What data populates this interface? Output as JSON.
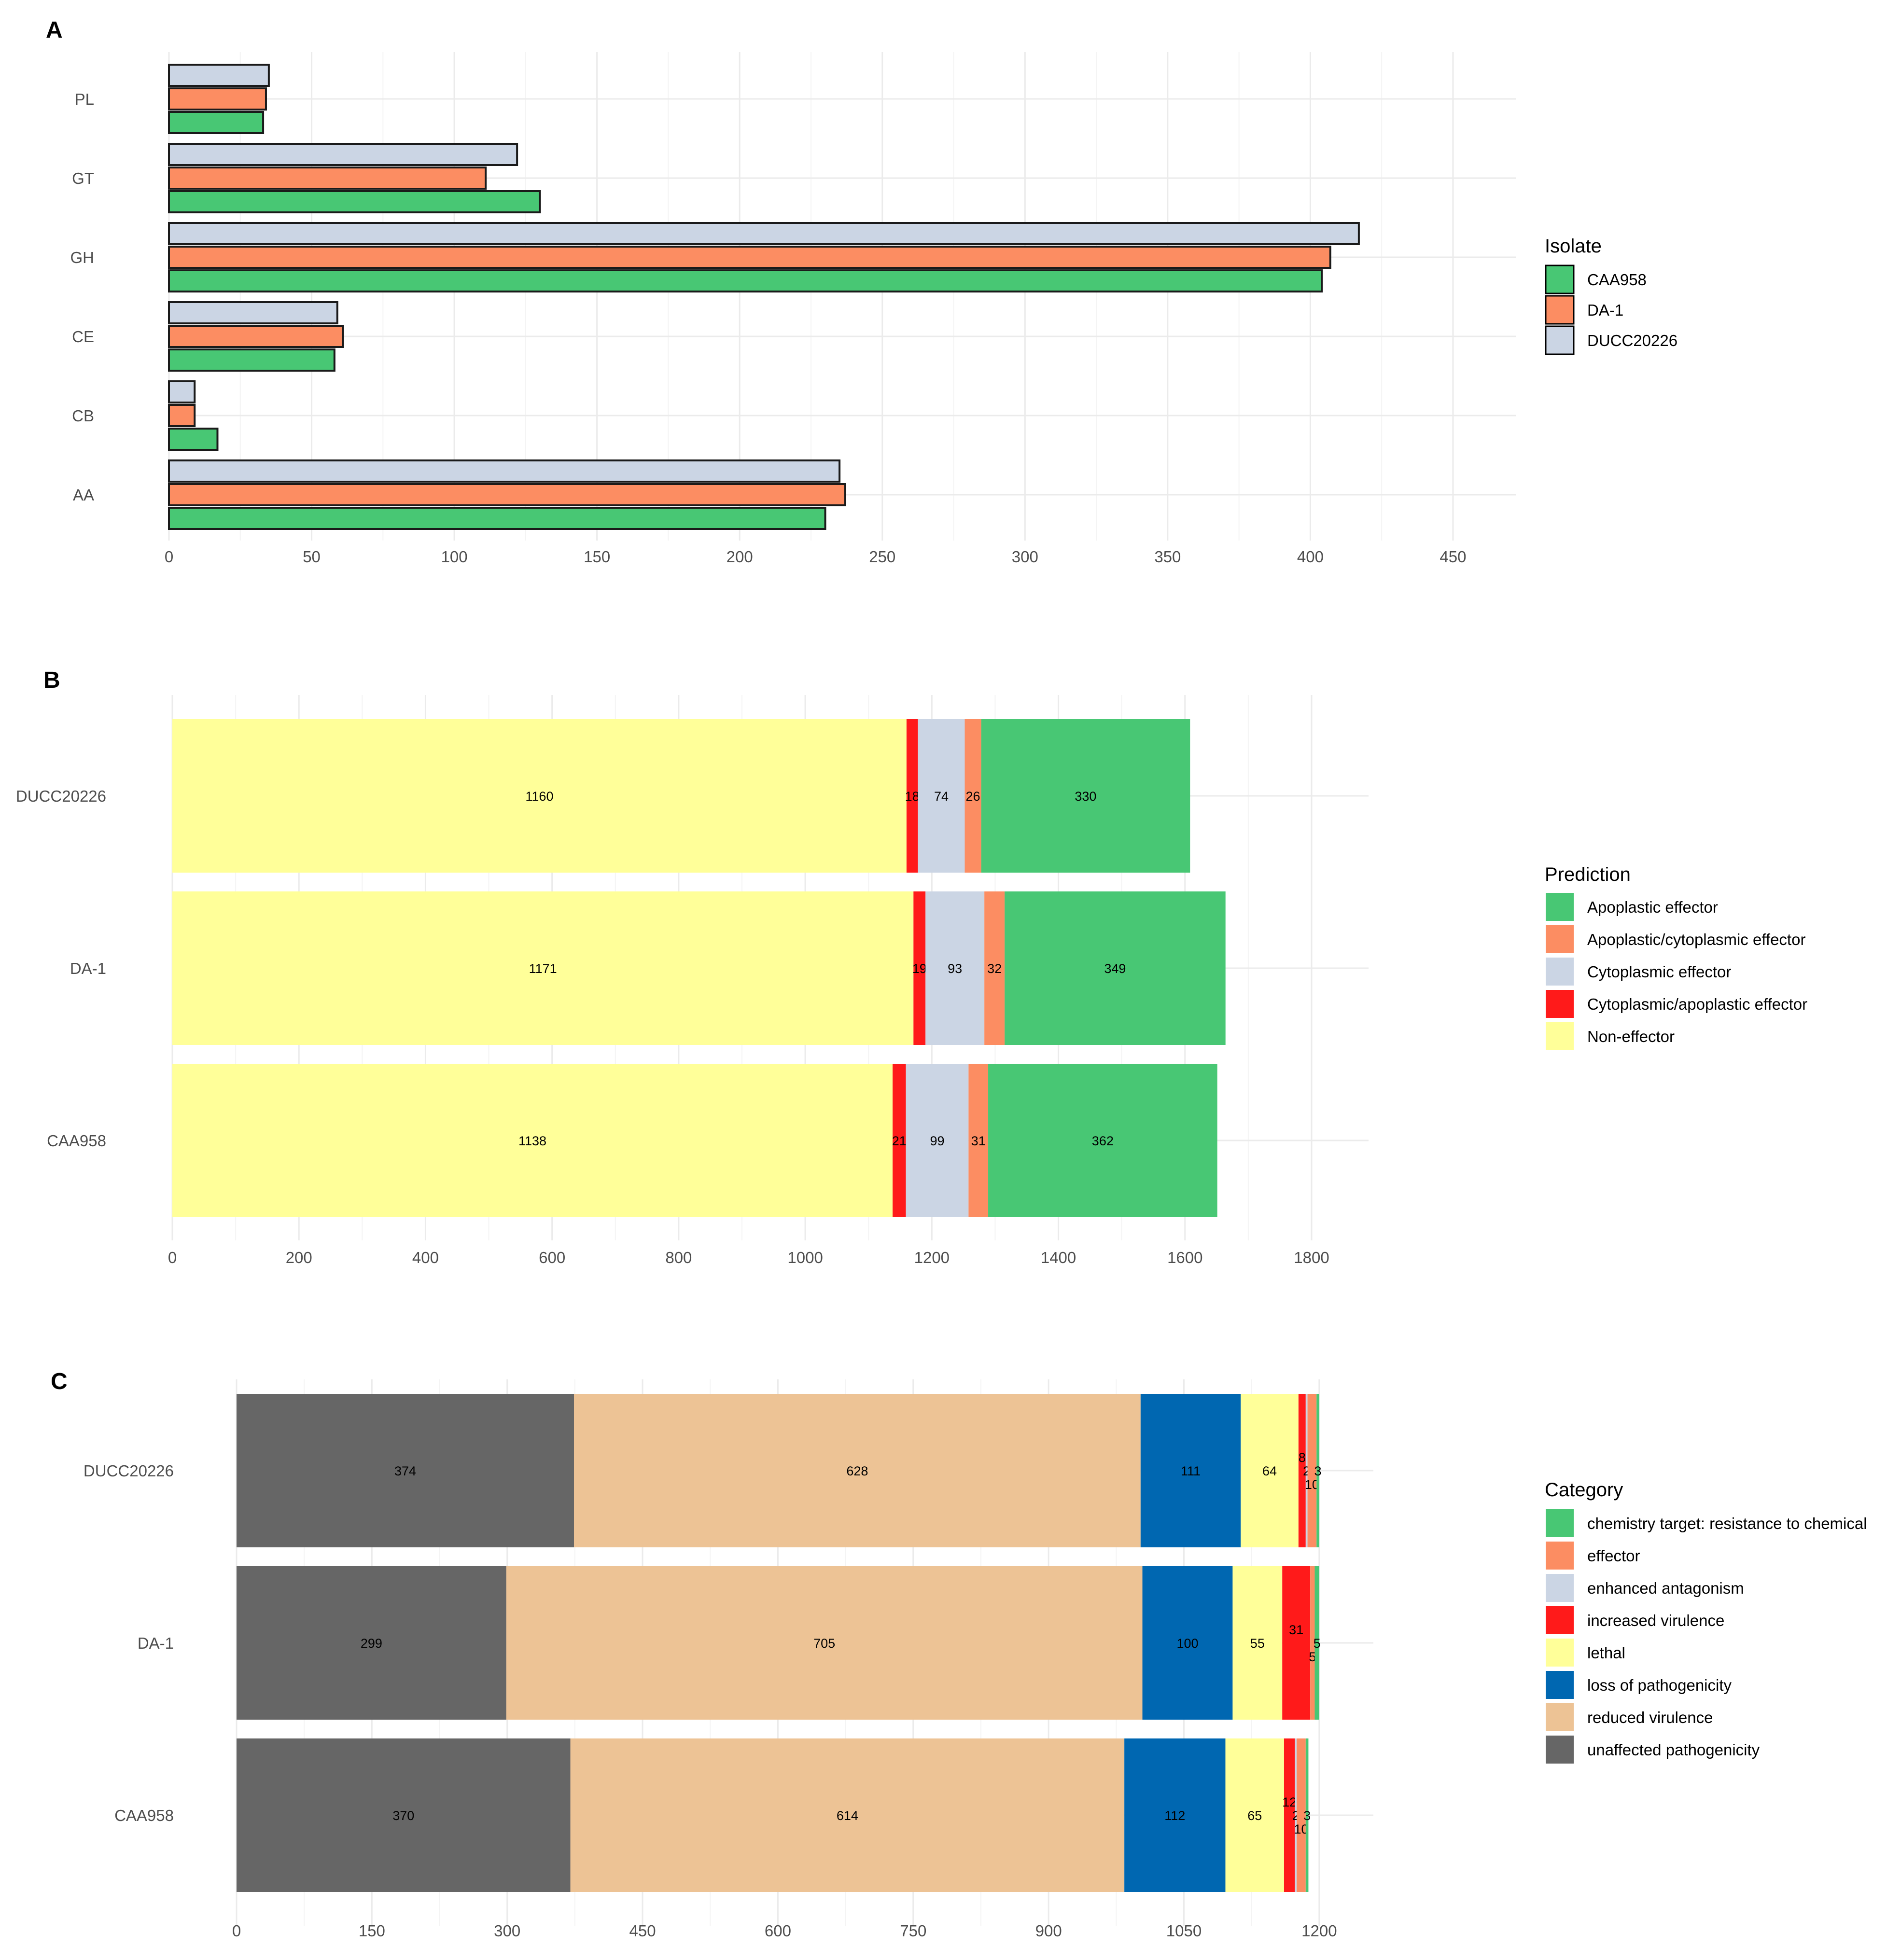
{
  "chart_data": [
    {
      "panel_label": "A",
      "type": "bar",
      "orientation": "horizontal",
      "grouped": true,
      "categories": [
        "PL",
        "GT",
        "GH",
        "CE",
        "CB",
        "AA"
      ],
      "series": [
        {
          "name": "DUCC20226",
          "color": "#CBD5E4",
          "values": [
            35,
            122,
            417,
            59,
            9,
            235
          ]
        },
        {
          "name": "DA-1",
          "color": "#FC8D62",
          "values": [
            34,
            111,
            407,
            61,
            9,
            237
          ]
        },
        {
          "name": "CAA958",
          "color": "#48C774",
          "values": [
            33,
            130,
            404,
            58,
            17,
            230
          ]
        }
      ],
      "xticks": [
        "0",
        "50",
        "100",
        "150",
        "200",
        "250",
        "300",
        "350",
        "400",
        "450"
      ],
      "xlim": [
        0,
        472
      ],
      "legend": {
        "title": "Isolate",
        "items": [
          "CAA958",
          "DA-1",
          "DUCC20226"
        ],
        "position": "right"
      },
      "grid": true
    },
    {
      "panel_label": "B",
      "type": "bar",
      "orientation": "horizontal",
      "stacked": true,
      "categories": [
        "DUCC20226",
        "DA-1",
        "CAA958"
      ],
      "series": [
        {
          "name": "Non-effector",
          "color": "#FFFF99",
          "values": [
            1160,
            1171,
            1138
          ]
        },
        {
          "name": "Cytoplasmic/apoplastic effector",
          "color": "#FF1A1A",
          "values": [
            18,
            19,
            21
          ]
        },
        {
          "name": "Cytoplasmic effector",
          "color": "#CBD5E4",
          "values": [
            74,
            93,
            99
          ]
        },
        {
          "name": "Apoplastic/cytoplasmic effector",
          "color": "#FC8D62",
          "values": [
            26,
            32,
            31
          ]
        },
        {
          "name": "Apoplastic effector",
          "color": "#48C774",
          "values": [
            330,
            349,
            362
          ]
        }
      ],
      "data_labels": [
        [
          "1160",
          "18",
          "74",
          "26",
          "330"
        ],
        [
          "1171",
          "19",
          "93",
          "32",
          "349"
        ],
        [
          "1138",
          "21",
          "99",
          "31",
          "362"
        ]
      ],
      "xticks": [
        "0",
        "200",
        "400",
        "600",
        "800",
        "1000",
        "1200",
        "1400",
        "1600",
        "1800"
      ],
      "xlim": [
        0,
        1890
      ],
      "legend": {
        "title": "Prediction",
        "items": [
          "Apoplastic effector",
          "Apoplastic/cytoplasmic effector",
          "Cytoplasmic effector",
          "Cytoplasmic/apoplastic effector",
          "Non-effector"
        ],
        "position": "right"
      },
      "grid": true
    },
    {
      "panel_label": "C",
      "type": "bar",
      "orientation": "horizontal",
      "stacked": true,
      "categories": [
        "DUCC20226",
        "DA-1",
        "CAA958"
      ],
      "series": [
        {
          "name": "unaffected pathogenicity",
          "color": "#666666",
          "values": [
            374,
            299,
            370
          ]
        },
        {
          "name": "reduced virulence",
          "color": "#EDC395",
          "values": [
            628,
            705,
            614
          ]
        },
        {
          "name": "loss of pathogenicity",
          "color": "#0067B1",
          "values": [
            111,
            100,
            112
          ]
        },
        {
          "name": "lethal",
          "color": "#FFFF99",
          "values": [
            64,
            55,
            65
          ]
        },
        {
          "name": "increased virulence",
          "color": "#FF1A1A",
          "values": [
            8,
            31,
            12
          ]
        },
        {
          "name": "enhanced antagonism",
          "color": "#CBD5E4",
          "values": [
            2,
            0,
            2
          ]
        },
        {
          "name": "effector",
          "color": "#FC8D62",
          "values": [
            10,
            5,
            10
          ]
        },
        {
          "name": "chemistry target: resistance to chemical",
          "color": "#48C774",
          "values": [
            3,
            5,
            3
          ]
        }
      ],
      "data_labels": [
        [
          "374",
          "628",
          "111",
          "64",
          "8",
          "2",
          "10",
          "3"
        ],
        [
          "299",
          "705",
          "100",
          "55",
          "31",
          "",
          "5",
          "5"
        ],
        [
          "370",
          "614",
          "112",
          "65",
          "12",
          "2",
          "10",
          "3"
        ]
      ],
      "xticks": [
        "0",
        "150",
        "300",
        "450",
        "600",
        "750",
        "900",
        "1050",
        "1200"
      ],
      "xlim": [
        0,
        1260
      ],
      "legend": {
        "title": "Category",
        "items": [
          "chemistry target: resistance to chemical",
          "effector",
          "enhanced antagonism",
          "increased virulence",
          "lethal",
          "loss of pathogenicity",
          "reduced virulence",
          "unaffected pathogenicity"
        ],
        "position": "right"
      },
      "grid": true
    }
  ]
}
